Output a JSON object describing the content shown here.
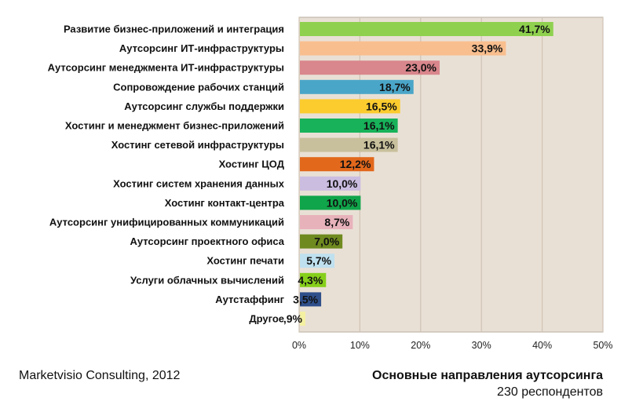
{
  "chart_data": {
    "type": "bar",
    "orientation": "horizontal",
    "categories": [
      "Развитие бизнес-приложений и интеграция",
      "Аутсорсинг ИТ-инфраструктуры",
      "Аутсорсинг менеджмента ИТ-инфраструктуры",
      "Сопровождение рабочих станций",
      "Аутсорсинг службы поддержки",
      "Хостинг и менеджмент бизнес-приложений",
      "Хостинг сетевой инфраструктуры",
      "Хостинг ЦОД",
      "Хостинг систем хранения данных",
      "Хостинг контакт-центра",
      "Аутсорсинг унифицированных коммуникаций",
      "Аутсорсинг проектного офиса",
      "Хостинг печати",
      "Услуги облачных вычислений",
      "Аутстаффинг",
      "Другое"
    ],
    "values": [
      41.7,
      33.9,
      23.0,
      18.7,
      16.5,
      16.1,
      16.1,
      12.2,
      10.0,
      10.0,
      8.7,
      7.0,
      5.7,
      4.3,
      3.5,
      0.9
    ],
    "value_labels": [
      "41,7%",
      "33,9%",
      "23,0%",
      "18,7%",
      "16,5%",
      "16,1%",
      "16,1%",
      "12,2%",
      "10,0%",
      "10,0%",
      "8,7%",
      "7,0%",
      "5,7%",
      "4,3%",
      "3,5%",
      ",9%"
    ],
    "colors": [
      "#8fd14f",
      "#f9be8e",
      "#d9868c",
      "#4aa6c8",
      "#fccc2e",
      "#17b25a",
      "#c8c09c",
      "#e2681c",
      "#cbbde0",
      "#10a54a",
      "#e8b2bb",
      "#6f8a1f",
      "#bfe0ef",
      "#86cf1b",
      "#2f4f8a",
      "#f4f0a2"
    ],
    "xlim": [
      0,
      50
    ],
    "xticks": [
      "0%",
      "10%",
      "20%",
      "30%",
      "40%",
      "50%"
    ],
    "grid": true,
    "plot_background": "#e9e0d5",
    "grid_color": "#cfc3b3",
    "source": "Marketvisio Consulting, 2012",
    "title": "Основные направления аутсорсинга",
    "subtitle": "230 респондентов"
  }
}
